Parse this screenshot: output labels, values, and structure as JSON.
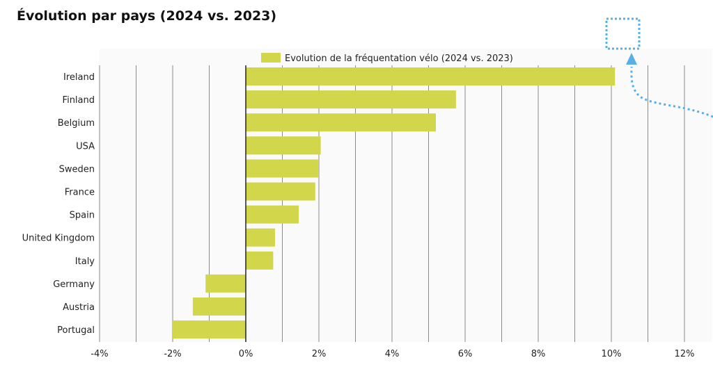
{
  "page": {
    "title": "Évolution par pays (2024 vs. 2023)"
  },
  "colors": {
    "bar": "#d2d64a",
    "plot_bg": "#fafafa",
    "grid": "#8a8a8a",
    "zero_line": "#222222",
    "annotation": "#5aaee6",
    "text": "#222222"
  },
  "chart_data": {
    "type": "bar",
    "orientation": "horizontal",
    "categories": [
      "Ireland",
      "Finland",
      "Belgium",
      "USA",
      "Sweden",
      "France",
      "Spain",
      "United Kingdom",
      "Italy",
      "Germany",
      "Austria",
      "Portugal"
    ],
    "series": [
      {
        "name": "Evolution de la fréquentation vélo (2024 vs. 2023)",
        "values": [
          10.1,
          5.75,
          5.2,
          2.05,
          1.98,
          1.9,
          1.45,
          0.8,
          0.75,
          -1.1,
          -1.45,
          -2.0
        ]
      }
    ],
    "xlim": [
      -4,
      12
    ],
    "x_ticks": [
      -4,
      -3,
      -2,
      -1,
      0,
      1,
      2,
      3,
      4,
      5,
      6,
      7,
      8,
      9,
      10,
      11,
      12
    ],
    "x_tick_labels": [
      {
        "value": -4,
        "label": "-4%"
      },
      {
        "value": -2,
        "label": "-2%"
      },
      {
        "value": 0,
        "label": "0%"
      },
      {
        "value": 2,
        "label": "2%"
      },
      {
        "value": 4,
        "label": "4%"
      },
      {
        "value": 6,
        "label": "6%"
      },
      {
        "value": 8,
        "label": "8%"
      },
      {
        "value": 10,
        "label": "10%"
      },
      {
        "value": 12,
        "label": "12%"
      }
    ],
    "xlabel": "",
    "ylabel": "",
    "grid": true,
    "legend_position": "top-center"
  }
}
